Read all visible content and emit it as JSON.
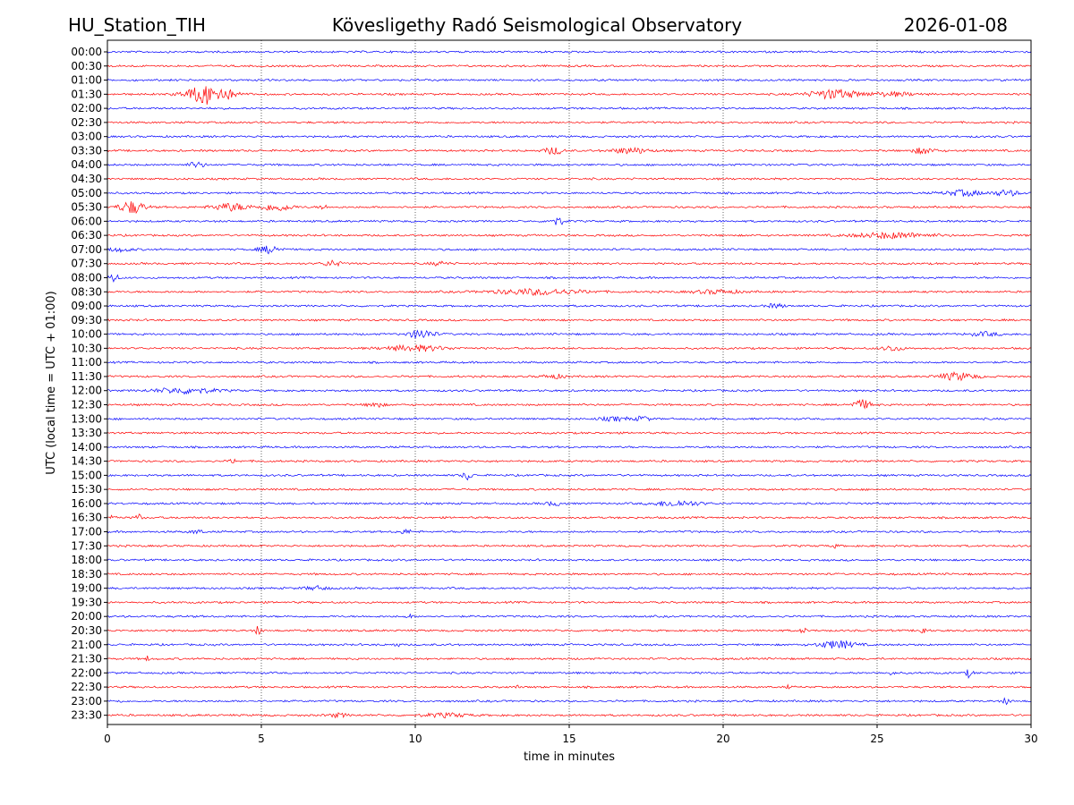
{
  "header": {
    "station": "HU_Station_TIH",
    "observatory": "Kövesligethy Radó Seismological Observatory",
    "date": "2026-01-08"
  },
  "chart_data": {
    "type": "line",
    "subtype": "helicorder",
    "title": "Kövesligethy Radó Seismological Observatory",
    "xlabel": "time in minutes",
    "ylabel": "UTC (local time = UTC + 01:00)",
    "xlim": [
      0,
      30
    ],
    "x_ticks": [
      "0",
      "5",
      "10",
      "15",
      "20",
      "25",
      "30"
    ],
    "grid": "vertical dotted at 5-minute intervals",
    "colors": {
      "even_rows": "#0000ff",
      "odd_rows": "#ff0000"
    },
    "series": [
      {
        "name": "00:00",
        "events": []
      },
      {
        "name": "00:30",
        "events": []
      },
      {
        "name": "01:00",
        "events": []
      },
      {
        "name": "01:30",
        "events": [
          {
            "t": 3.3,
            "amp": 11,
            "dur": 1.4
          },
          {
            "t": 23.6,
            "amp": 5,
            "dur": 1.6
          },
          {
            "t": 25.5,
            "amp": 2,
            "dur": 1.5
          }
        ]
      },
      {
        "name": "02:00",
        "events": []
      },
      {
        "name": "02:30",
        "events": []
      },
      {
        "name": "03:00",
        "events": []
      },
      {
        "name": "03:30",
        "events": [
          {
            "t": 14.5,
            "amp": 4,
            "dur": 0.6
          },
          {
            "t": 17.0,
            "amp": 3,
            "dur": 1.2
          },
          {
            "t": 26.5,
            "amp": 3,
            "dur": 0.8
          }
        ]
      },
      {
        "name": "04:00",
        "events": [
          {
            "t": 2.9,
            "amp": 3,
            "dur": 0.5
          }
        ]
      },
      {
        "name": "04:30",
        "events": []
      },
      {
        "name": "05:00",
        "events": [
          {
            "t": 27.8,
            "amp": 3,
            "dur": 1.2
          },
          {
            "t": 29.2,
            "amp": 3,
            "dur": 0.8
          }
        ]
      },
      {
        "name": "05:30",
        "events": [
          {
            "t": 0.8,
            "amp": 7,
            "dur": 0.8
          },
          {
            "t": 4.0,
            "amp": 4,
            "dur": 1.2
          },
          {
            "t": 5.5,
            "amp": 4,
            "dur": 1.0
          },
          {
            "t": 7.0,
            "amp": 4,
            "dur": 0.2
          }
        ]
      },
      {
        "name": "06:00",
        "events": [
          {
            "t": 14.6,
            "amp": 4,
            "dur": 0.5
          }
        ]
      },
      {
        "name": "06:30",
        "events": [
          {
            "t": 25.5,
            "amp": 3,
            "dur": 2.5
          }
        ]
      },
      {
        "name": "07:00",
        "events": [
          {
            "t": 5.3,
            "amp": 4,
            "dur": 0.7
          },
          {
            "t": 0.4,
            "amp": 2,
            "dur": 0.8
          }
        ]
      },
      {
        "name": "07:30",
        "events": [
          {
            "t": 7.3,
            "amp": 3,
            "dur": 0.6
          },
          {
            "t": 10.8,
            "amp": 2,
            "dur": 0.6
          }
        ]
      },
      {
        "name": "08:00",
        "events": [
          {
            "t": 0.2,
            "amp": 5,
            "dur": 0.3
          }
        ]
      },
      {
        "name": "08:30",
        "events": [
          {
            "t": 14.0,
            "amp": 3,
            "dur": 3.0
          },
          {
            "t": 19.8,
            "amp": 2,
            "dur": 1.5
          }
        ]
      },
      {
        "name": "09:00",
        "events": [
          {
            "t": 21.7,
            "amp": 2,
            "dur": 0.6
          }
        ]
      },
      {
        "name": "09:30",
        "events": []
      },
      {
        "name": "10:00",
        "events": [
          {
            "t": 10.2,
            "amp": 5,
            "dur": 0.8
          },
          {
            "t": 28.5,
            "amp": 2,
            "dur": 1.0
          }
        ]
      },
      {
        "name": "10:30",
        "events": [
          {
            "t": 10.0,
            "amp": 3,
            "dur": 2.0
          },
          {
            "t": 25.5,
            "amp": 3,
            "dur": 0.6
          }
        ]
      },
      {
        "name": "11:00",
        "events": []
      },
      {
        "name": "11:30",
        "events": [
          {
            "t": 14.5,
            "amp": 2,
            "dur": 0.8
          },
          {
            "t": 27.6,
            "amp": 4,
            "dur": 1.2
          }
        ]
      },
      {
        "name": "12:00",
        "events": [
          {
            "t": 2.5,
            "amp": 3,
            "dur": 2.0
          }
        ]
      },
      {
        "name": "12:30",
        "events": [
          {
            "t": 8.7,
            "amp": 3,
            "dur": 0.5
          },
          {
            "t": 24.5,
            "amp": 5,
            "dur": 0.6
          }
        ]
      },
      {
        "name": "13:00",
        "events": [
          {
            "t": 16.5,
            "amp": 2,
            "dur": 1.0
          },
          {
            "t": 17.4,
            "amp": 3,
            "dur": 0.4
          }
        ]
      },
      {
        "name": "13:30",
        "events": []
      },
      {
        "name": "14:00",
        "events": []
      },
      {
        "name": "14:30",
        "events": [
          {
            "t": 4.1,
            "amp": 2,
            "dur": 0.3
          }
        ]
      },
      {
        "name": "15:00",
        "events": [
          {
            "t": 11.7,
            "amp": 5,
            "dur": 0.3
          }
        ]
      },
      {
        "name": "15:30",
        "events": []
      },
      {
        "name": "16:00",
        "events": [
          {
            "t": 18.5,
            "amp": 3,
            "dur": 1.5
          },
          {
            "t": 14.5,
            "amp": 2,
            "dur": 0.6
          }
        ]
      },
      {
        "name": "16:30",
        "events": [
          {
            "t": 1.0,
            "amp": 4,
            "dur": 0.2
          },
          {
            "t": 0.2,
            "amp": 3,
            "dur": 0.2
          }
        ]
      },
      {
        "name": "17:00",
        "events": [
          {
            "t": 9.7,
            "amp": 2,
            "dur": 0.5
          },
          {
            "t": 2.9,
            "amp": 2,
            "dur": 0.4
          }
        ]
      },
      {
        "name": "17:30",
        "events": [
          {
            "t": 23.6,
            "amp": 2,
            "dur": 0.2
          }
        ]
      },
      {
        "name": "18:00",
        "events": []
      },
      {
        "name": "18:30",
        "events": []
      },
      {
        "name": "19:00",
        "events": [
          {
            "t": 6.8,
            "amp": 2,
            "dur": 0.8
          }
        ]
      },
      {
        "name": "19:30",
        "events": []
      },
      {
        "name": "20:00",
        "events": [
          {
            "t": 9.8,
            "amp": 2,
            "dur": 0.2
          }
        ]
      },
      {
        "name": "20:30",
        "events": [
          {
            "t": 4.9,
            "amp": 5,
            "dur": 0.2
          },
          {
            "t": 22.6,
            "amp": 3,
            "dur": 0.2
          },
          {
            "t": 26.5,
            "amp": 5,
            "dur": 0.2
          }
        ]
      },
      {
        "name": "21:00",
        "events": [
          {
            "t": 23.7,
            "amp": 4,
            "dur": 1.2
          },
          {
            "t": 9.4,
            "amp": 2,
            "dur": 0.2
          }
        ]
      },
      {
        "name": "21:30",
        "events": [
          {
            "t": 1.3,
            "amp": 3,
            "dur": 0.1
          }
        ]
      },
      {
        "name": "22:00",
        "events": [
          {
            "t": 28.0,
            "amp": 5,
            "dur": 0.2
          },
          {
            "t": 25.5,
            "amp": 2,
            "dur": 0.2
          }
        ]
      },
      {
        "name": "22:30",
        "events": [
          {
            "t": 13.3,
            "amp": 2,
            "dur": 0.1
          },
          {
            "t": 22.1,
            "amp": 2,
            "dur": 0.1
          }
        ]
      },
      {
        "name": "23:00",
        "events": [
          {
            "t": 29.2,
            "amp": 4,
            "dur": 0.2
          },
          {
            "t": 0.4,
            "amp": 2,
            "dur": 0.1
          }
        ]
      },
      {
        "name": "23:30",
        "events": [
          {
            "t": 11.0,
            "amp": 2,
            "dur": 1.5
          },
          {
            "t": 7.5,
            "amp": 2,
            "dur": 0.6
          }
        ]
      }
    ]
  }
}
